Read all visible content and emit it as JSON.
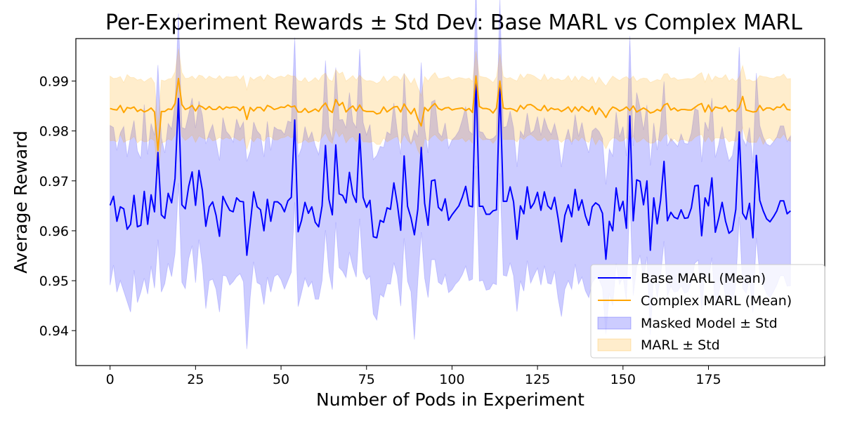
{
  "chart_data": {
    "type": "line",
    "title": "Per-Experiment Rewards ± Std Dev: Base MARL vs Complex MARL",
    "xlabel": "Number of Pods in Experiment",
    "ylabel": "Average Reward",
    "xlim": [
      -10,
      209
    ],
    "ylim": [
      0.933,
      0.9985
    ],
    "xticks": [
      0,
      25,
      50,
      75,
      100,
      125,
      150,
      175
    ],
    "xtick_labels": [
      "0",
      "25",
      "50",
      "75",
      "100",
      "125",
      "150",
      "175"
    ],
    "yticks": [
      0.94,
      0.95,
      0.96,
      0.97,
      0.98,
      0.99
    ],
    "ytick_labels": [
      "0.94",
      "0.95",
      "0.96",
      "0.97",
      "0.98",
      "0.99"
    ],
    "grid": false,
    "legend_position": "lower-right",
    "x": {
      "start": 0,
      "end": 199,
      "step": 1
    },
    "series": [
      {
        "name": "Base MARL (Mean)",
        "kind": "line",
        "color": "#0000ff",
        "values": [
          0.9651,
          0.9669,
          0.9619,
          0.9648,
          0.9644,
          0.9603,
          0.9613,
          0.9671,
          0.9608,
          0.9611,
          0.9679,
          0.9613,
          0.9672,
          0.9638,
          0.9757,
          0.9632,
          0.9625,
          0.9675,
          0.9656,
          0.9705,
          0.9865,
          0.9652,
          0.9644,
          0.9689,
          0.9718,
          0.9651,
          0.9721,
          0.9681,
          0.9609,
          0.9648,
          0.9658,
          0.9631,
          0.9589,
          0.9669,
          0.9654,
          0.9641,
          0.9638,
          0.9666,
          0.9659,
          0.9658,
          0.9551,
          0.9614,
          0.9678,
          0.9648,
          0.9642,
          0.96,
          0.9663,
          0.9619,
          0.9658,
          0.9658,
          0.9652,
          0.9638,
          0.966,
          0.9667,
          0.9822,
          0.9598,
          0.9621,
          0.9657,
          0.9635,
          0.9648,
          0.9617,
          0.9608,
          0.965,
          0.9771,
          0.9663,
          0.9632,
          0.9772,
          0.9674,
          0.9671,
          0.9656,
          0.9717,
          0.9673,
          0.9657,
          0.9794,
          0.9667,
          0.9647,
          0.9661,
          0.9588,
          0.9586,
          0.9621,
          0.9617,
          0.9646,
          0.9643,
          0.9696,
          0.9654,
          0.9601,
          0.975,
          0.9649,
          0.9626,
          0.9592,
          0.9643,
          0.9767,
          0.9655,
          0.9611,
          0.97,
          0.9702,
          0.9647,
          0.964,
          0.9664,
          0.9621,
          0.9632,
          0.9641,
          0.965,
          0.9667,
          0.9689,
          0.965,
          0.9648,
          0.991,
          0.9649,
          0.9649,
          0.9633,
          0.9633,
          0.964,
          0.9642,
          0.989,
          0.9659,
          0.9659,
          0.9688,
          0.9658,
          0.9583,
          0.965,
          0.9634,
          0.9688,
          0.9645,
          0.9656,
          0.9677,
          0.9641,
          0.9678,
          0.965,
          0.9643,
          0.9667,
          0.9626,
          0.9578,
          0.9631,
          0.9652,
          0.9628,
          0.9683,
          0.9641,
          0.9662,
          0.963,
          0.9611,
          0.9648,
          0.9656,
          0.9651,
          0.9635,
          0.9543,
          0.9619,
          0.96,
          0.9686,
          0.964,
          0.9659,
          0.9605,
          0.983,
          0.962,
          0.9702,
          0.9699,
          0.9652,
          0.97,
          0.9561,
          0.9666,
          0.9614,
          0.9661,
          0.9739,
          0.962,
          0.9637,
          0.9627,
          0.9624,
          0.9642,
          0.9625,
          0.9626,
          0.9646,
          0.969,
          0.9691,
          0.959,
          0.9666,
          0.965,
          0.9706,
          0.9597,
          0.9625,
          0.9657,
          0.9619,
          0.9595,
          0.9601,
          0.9643,
          0.9798,
          0.9635,
          0.9623,
          0.9655,
          0.9586,
          0.9751,
          0.9661,
          0.964,
          0.9624,
          0.9618,
          0.9628,
          0.964,
          0.966,
          0.966,
          0.9634,
          0.964,
          0.9617,
          0.9682
        ]
      },
      {
        "name": "Complex MARL (Mean)",
        "kind": "line",
        "color": "#ffa500",
        "values": [
          0.9845,
          0.9843,
          0.9842,
          0.9851,
          0.9837,
          0.9847,
          0.9845,
          0.9848,
          0.9839,
          0.9843,
          0.9838,
          0.9841,
          0.9846,
          0.9838,
          0.9761,
          0.9839,
          0.9839,
          0.9844,
          0.9843,
          0.9855,
          0.9905,
          0.9853,
          0.9843,
          0.9846,
          0.9851,
          0.984,
          0.9851,
          0.9848,
          0.9843,
          0.9849,
          0.9843,
          0.9843,
          0.9849,
          0.9843,
          0.9848,
          0.9846,
          0.9848,
          0.9847,
          0.9841,
          0.9849,
          0.9823,
          0.9847,
          0.984,
          0.9847,
          0.9847,
          0.984,
          0.9851,
          0.9848,
          0.9843,
          0.9845,
          0.9848,
          0.9847,
          0.9852,
          0.9848,
          0.985,
          0.9838,
          0.9838,
          0.9845,
          0.9837,
          0.984,
          0.9844,
          0.9839,
          0.9849,
          0.9856,
          0.9842,
          0.9837,
          0.9863,
          0.9851,
          0.9857,
          0.9838,
          0.9845,
          0.985,
          0.984,
          0.9852,
          0.9841,
          0.9839,
          0.9839,
          0.9839,
          0.9834,
          0.9836,
          0.9848,
          0.9838,
          0.9843,
          0.9848,
          0.9849,
          0.9838,
          0.9854,
          0.9843,
          0.9834,
          0.9845,
          0.9824,
          0.981,
          0.9847,
          0.984,
          0.9849,
          0.9855,
          0.9845,
          0.9842,
          0.9846,
          0.9847,
          0.9842,
          0.9844,
          0.9845,
          0.9846,
          0.9841,
          0.9845,
          0.9837,
          0.991,
          0.9849,
          0.9845,
          0.9845,
          0.9843,
          0.9836,
          0.9846,
          0.99,
          0.9846,
          0.9844,
          0.9845,
          0.9843,
          0.9839,
          0.9851,
          0.9844,
          0.9852,
          0.9853,
          0.9849,
          0.9843,
          0.9841,
          0.9851,
          0.984,
          0.9846,
          0.9843,
          0.9844,
          0.9839,
          0.9843,
          0.9848,
          0.9838,
          0.9848,
          0.984,
          0.9849,
          0.9843,
          0.9839,
          0.9849,
          0.9833,
          0.9846,
          0.9838,
          0.9827,
          0.984,
          0.9848,
          0.9845,
          0.984,
          0.9843,
          0.9848,
          0.9841,
          0.985,
          0.9838,
          0.9842,
          0.9846,
          0.9842,
          0.9836,
          0.9838,
          0.9843,
          0.984,
          0.9852,
          0.9855,
          0.9842,
          0.9846,
          0.984,
          0.9843,
          0.9843,
          0.9842,
          0.9842,
          0.9847,
          0.9852,
          0.9855,
          0.9838,
          0.9852,
          0.9839,
          0.9848,
          0.9846,
          0.9845,
          0.985,
          0.9839,
          0.9843,
          0.9839,
          0.9847,
          0.9869,
          0.9842,
          0.984,
          0.9838,
          0.9839,
          0.9851,
          0.9841,
          0.9846,
          0.9846,
          0.9842,
          0.9848,
          0.9847,
          0.9854,
          0.9843,
          0.9842,
          0.9842,
          0.9848
        ]
      },
      {
        "name": "Masked Model ± Std",
        "kind": "band",
        "of": "Base MARL (Mean)",
        "color": "#0000ff",
        "opacity": 0.2,
        "std": [
          0.016,
          0.0138,
          0.0142,
          0.0148,
          0.0165,
          0.0145,
          0.0176,
          0.015,
          0.0152,
          0.0134,
          0.0174,
          0.014,
          0.0143,
          0.0153,
          0.0175,
          0.0155,
          0.0131,
          0.014,
          0.0148,
          0.015,
          0.017,
          0.0155,
          0.016,
          0.0145,
          0.0148,
          0.0155,
          0.0139,
          0.015,
          0.0165,
          0.0148,
          0.0155,
          0.0148,
          0.0152,
          0.0158,
          0.0145,
          0.015,
          0.014,
          0.0158,
          0.0145,
          0.016,
          0.0188,
          0.0146,
          0.014,
          0.0152,
          0.015,
          0.0148,
          0.0156,
          0.0142,
          0.015,
          0.0145,
          0.015,
          0.0155,
          0.016,
          0.015,
          0.0165,
          0.015,
          0.0145,
          0.0152,
          0.0148,
          0.015,
          0.0154,
          0.0145,
          0.015,
          0.017,
          0.0145,
          0.015,
          0.0155,
          0.0148,
          0.0152,
          0.015,
          0.016,
          0.0145,
          0.015,
          0.017,
          0.015,
          0.0145,
          0.0152,
          0.0155,
          0.0165,
          0.0148,
          0.015,
          0.0152,
          0.015,
          0.016,
          0.0145,
          0.0152,
          0.0165,
          0.015,
          0.0148,
          0.021,
          0.0145,
          0.017,
          0.015,
          0.0145,
          0.0158,
          0.016,
          0.015,
          0.0148,
          0.0152,
          0.0145,
          0.015,
          0.0148,
          0.015,
          0.0155,
          0.016,
          0.015,
          0.0145,
          0.018,
          0.015,
          0.0148,
          0.0152,
          0.015,
          0.0145,
          0.015,
          0.0175,
          0.0148,
          0.015,
          0.0152,
          0.0148,
          0.0145,
          0.015,
          0.0155,
          0.0148,
          0.015,
          0.0145,
          0.0152,
          0.015,
          0.0148,
          0.0155,
          0.015,
          0.0148,
          0.016,
          0.015,
          0.0148,
          0.0152,
          0.0145,
          0.015,
          0.0148,
          0.0155,
          0.015,
          0.0145,
          0.0152,
          0.015,
          0.0148,
          0.015,
          0.015,
          0.0145,
          0.015,
          0.0152,
          0.0148,
          0.015,
          0.0145,
          0.016,
          0.015,
          0.0175,
          0.0148,
          0.015,
          0.0152,
          0.017,
          0.015,
          0.0148,
          0.0152,
          0.016,
          0.015,
          0.0148,
          0.015,
          0.0145,
          0.0152,
          0.015,
          0.0148,
          0.015,
          0.0155,
          0.015,
          0.0148,
          0.0152,
          0.015,
          0.016,
          0.015,
          0.0148,
          0.0152,
          0.015,
          0.0145,
          0.015,
          0.015,
          0.017,
          0.015,
          0.0148,
          0.0152,
          0.015,
          0.0165,
          0.015,
          0.0148,
          0.015,
          0.0152,
          0.015,
          0.0148,
          0.015,
          0.015,
          0.0145,
          0.015,
          0.0148,
          0.016
        ]
      },
      {
        "name": "MARL ± Std",
        "kind": "band",
        "of": "Complex MARL (Mean)",
        "color": "#ffa500",
        "opacity": 0.2,
        "std": [
          0.0065,
          0.0062,
          0.0064,
          0.0058,
          0.006,
          0.0066,
          0.0062,
          0.0059,
          0.0063,
          0.0061,
          0.006,
          0.0062,
          0.0061,
          0.0058,
          0.005,
          0.0063,
          0.0061,
          0.006,
          0.0062,
          0.0063,
          0.006,
          0.0064,
          0.0062,
          0.006,
          0.0059,
          0.0063,
          0.0061,
          0.0062,
          0.006,
          0.0061,
          0.0063,
          0.0061,
          0.0062,
          0.006,
          0.0061,
          0.0062,
          0.006,
          0.0063,
          0.0061,
          0.0062,
          0.006,
          0.0061,
          0.0062,
          0.006,
          0.0063,
          0.0061,
          0.0062,
          0.006,
          0.0061,
          0.0063,
          0.0062,
          0.006,
          0.0061,
          0.0062,
          0.006,
          0.0063,
          0.0061,
          0.0062,
          0.006,
          0.0061,
          0.0063,
          0.0061,
          0.0062,
          0.006,
          0.0061,
          0.0062,
          0.006,
          0.0063,
          0.0061,
          0.0062,
          0.006,
          0.0061,
          0.0062,
          0.006,
          0.0063,
          0.0061,
          0.0062,
          0.006,
          0.0061,
          0.0063,
          0.0062,
          0.006,
          0.0061,
          0.0062,
          0.006,
          0.0063,
          0.0061,
          0.0062,
          0.006,
          0.0061,
          0.0063,
          0.0061,
          0.0062,
          0.006,
          0.0061,
          0.0062,
          0.006,
          0.0063,
          0.0061,
          0.0062,
          0.006,
          0.0061,
          0.0062,
          0.006,
          0.0063,
          0.0061,
          0.0062,
          0.005,
          0.0061,
          0.0063,
          0.0062,
          0.006,
          0.0061,
          0.0062,
          0.0055,
          0.0063,
          0.0061,
          0.0062,
          0.006,
          0.0061,
          0.0063,
          0.0061,
          0.0062,
          0.006,
          0.0061,
          0.0062,
          0.006,
          0.0063,
          0.0061,
          0.0062,
          0.006,
          0.0061,
          0.0062,
          0.006,
          0.0063,
          0.0061,
          0.0062,
          0.006,
          0.0061,
          0.0063,
          0.0062,
          0.006,
          0.0061,
          0.0062,
          0.006,
          0.0063,
          0.0061,
          0.0062,
          0.006,
          0.0061,
          0.0063,
          0.0061,
          0.0062,
          0.006,
          0.0061,
          0.0062,
          0.006,
          0.0063,
          0.0061,
          0.0062,
          0.006,
          0.0061,
          0.0062,
          0.006,
          0.0063,
          0.0061,
          0.0062,
          0.006,
          0.0061,
          0.0063,
          0.0062,
          0.006,
          0.0061,
          0.0062,
          0.006,
          0.0063,
          0.0061,
          0.0062,
          0.006,
          0.0061,
          0.0063,
          0.0061,
          0.0062,
          0.006,
          0.0061,
          0.0062,
          0.006,
          0.0063,
          0.0061,
          0.0062,
          0.006,
          0.0068,
          0.0062,
          0.006,
          0.0063,
          0.0061,
          0.0062,
          0.006,
          0.0061,
          0.0063,
          0.0062,
          0.006,
          0.0061,
          0.0062
        ]
      }
    ]
  }
}
